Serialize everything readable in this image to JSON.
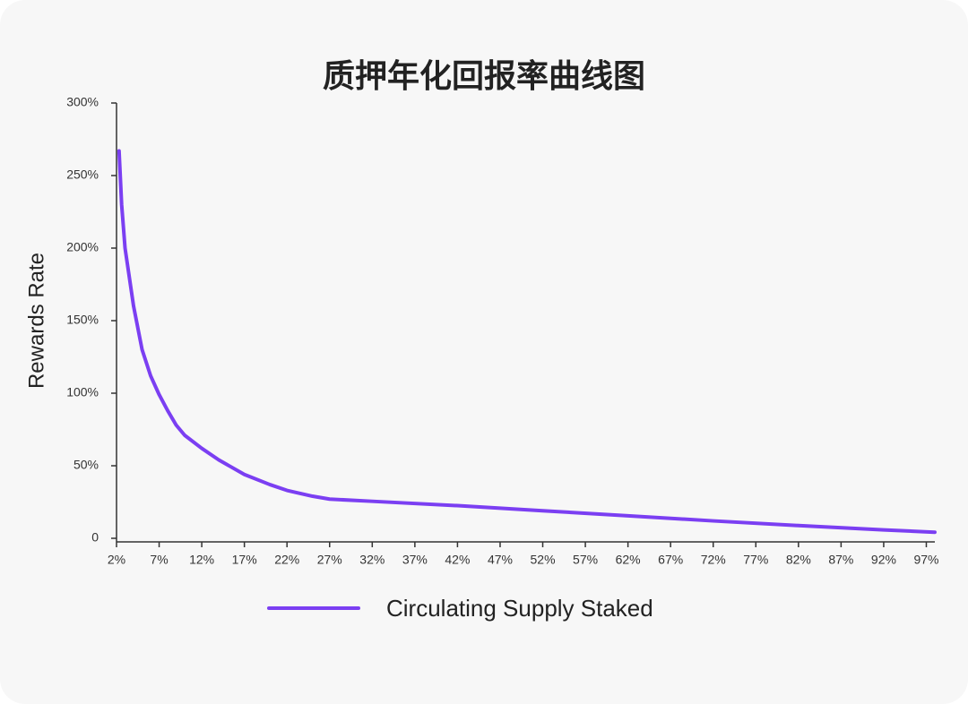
{
  "chart_data": {
    "type": "line",
    "title": "质押年化回报率曲线图",
    "y_label": "Rewards Rate",
    "x": [
      2.3,
      2.6,
      3,
      4,
      5,
      6,
      7,
      8,
      9,
      10,
      12,
      14,
      17,
      20,
      22,
      25,
      27,
      32,
      42,
      52,
      62,
      72,
      82,
      92,
      98
    ],
    "series": [
      {
        "name": "Circulating Supply Staked",
        "color": "#7b3ff2",
        "values": [
          267,
          230,
          200,
          160,
          130,
          112,
          99,
          88,
          78,
          71,
          62,
          54,
          44,
          37,
          33,
          29,
          27,
          25.5,
          22.5,
          19,
          15.5,
          12,
          8.8,
          5.8,
          4.2
        ]
      }
    ],
    "xlim": [
      2,
      98
    ],
    "xticks": [
      {
        "value": 2,
        "label": "2%"
      },
      {
        "value": 7,
        "label": "7%"
      },
      {
        "value": 12,
        "label": "12%"
      },
      {
        "value": 17,
        "label": "17%"
      },
      {
        "value": 22,
        "label": "22%"
      },
      {
        "value": 27,
        "label": "27%"
      },
      {
        "value": 32,
        "label": "32%"
      },
      {
        "value": 37,
        "label": "37%"
      },
      {
        "value": 42,
        "label": "42%"
      },
      {
        "value": 47,
        "label": "47%"
      },
      {
        "value": 52,
        "label": "52%"
      },
      {
        "value": 57,
        "label": "57%"
      },
      {
        "value": 62,
        "label": "62%"
      },
      {
        "value": 67,
        "label": "67%"
      },
      {
        "value": 72,
        "label": "72%"
      },
      {
        "value": 77,
        "label": "77%"
      },
      {
        "value": 82,
        "label": "82%"
      },
      {
        "value": 87,
        "label": "87%"
      },
      {
        "value": 92,
        "label": "92%"
      },
      {
        "value": 97,
        "label": "97%"
      }
    ],
    "ylim": [
      0,
      300
    ],
    "yticks": [
      0,
      {
        "value": 50,
        "label": "50%"
      },
      {
        "value": 100,
        "label": "100%"
      },
      {
        "value": 150,
        "label": "150%"
      },
      {
        "value": 200,
        "label": "200%"
      },
      {
        "value": 250,
        "label": "250%"
      },
      {
        "value": 300,
        "label": "300%"
      }
    ]
  }
}
